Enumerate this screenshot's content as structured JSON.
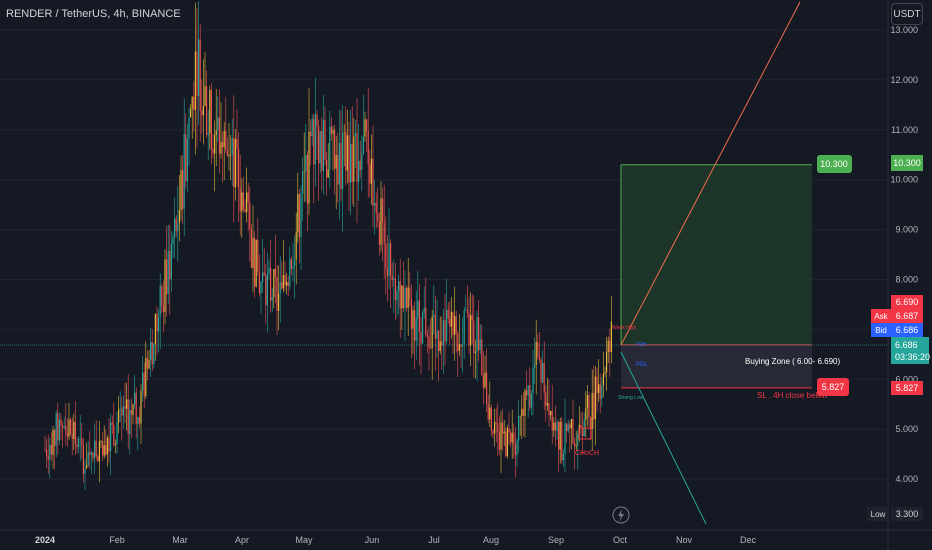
{
  "header": {
    "title": "RENDER / TetherUS, 4h, BINANCE",
    "currency_button": "USDT"
  },
  "price_axis": {
    "ticks": [
      "13.000",
      "12.000",
      "11.000",
      "10.000",
      "9.000",
      "8.000",
      "7.000",
      "6.000",
      "5.000",
      "4.000"
    ],
    "tick_values": [
      13,
      12,
      11,
      10,
      9,
      8,
      7,
      6,
      5,
      4
    ]
  },
  "time_axis": {
    "ticks": [
      "2024",
      "Feb",
      "Mar",
      "Apr",
      "May",
      "Jun",
      "Jul",
      "Aug",
      "Sep",
      "Oct",
      "Nov",
      "Dec"
    ]
  },
  "price_tags": {
    "target": "10.300",
    "target_right": "10.300",
    "high": "6.690",
    "ask_label": "Ask",
    "ask_value": "6.687",
    "bid_label": "Bid",
    "bid_value": "6.686",
    "last": "6.686",
    "countdown": "03:36:20",
    "stop": "5.827",
    "stop_right": "5.827",
    "low_label": "Low",
    "low_value": "3.300"
  },
  "annotations": {
    "buying_zone": "Buying Zone ( 6.00- 6.690)",
    "sl_note": "SL . 4H close below",
    "choch": "CHoCH",
    "pdl": "PDL",
    "strong_low": "Strong Low",
    "weak_high": "Weak High",
    "pdh": "PDH"
  },
  "colors": {
    "background": "#151924",
    "up": "#26a69a",
    "up_alt": "#e2b93b",
    "down": "#ef5350",
    "target_green": "#4caf50",
    "stop_red": "#f23645",
    "bid_blue": "#2962ff"
  },
  "chart_data": {
    "type": "candlestick",
    "symbol": "RENDER / TetherUS",
    "interval": "4h",
    "exchange": "BINANCE",
    "ylim": [
      3.3,
      13.5
    ],
    "approx_path": [
      {
        "x": "2024-01-01",
        "y": 4.6
      },
      {
        "x": "2024-01-10",
        "y": 5.2
      },
      {
        "x": "2024-01-20",
        "y": 4.4
      },
      {
        "x": "2024-01-31",
        "y": 4.9
      },
      {
        "x": "2024-02-15",
        "y": 5.4
      },
      {
        "x": "2024-02-26",
        "y": 7.5
      },
      {
        "x": "2024-03-06",
        "y": 9.5
      },
      {
        "x": "2024-03-14",
        "y": 12.5
      },
      {
        "x": "2024-03-20",
        "y": 11.2
      },
      {
        "x": "2024-04-01",
        "y": 10.4
      },
      {
        "x": "2024-04-13",
        "y": 8.0
      },
      {
        "x": "2024-04-24",
        "y": 7.6
      },
      {
        "x": "2024-05-10",
        "y": 10.9
      },
      {
        "x": "2024-05-20",
        "y": 10.3
      },
      {
        "x": "2024-06-05",
        "y": 10.6
      },
      {
        "x": "2024-06-12",
        "y": 8.8
      },
      {
        "x": "2024-06-25",
        "y": 7.3
      },
      {
        "x": "2024-07-10",
        "y": 7.0
      },
      {
        "x": "2024-07-27",
        "y": 6.9
      },
      {
        "x": "2024-08-05",
        "y": 4.8
      },
      {
        "x": "2024-08-15",
        "y": 4.7
      },
      {
        "x": "2024-08-25",
        "y": 6.4
      },
      {
        "x": "2024-09-06",
        "y": 4.7
      },
      {
        "x": "2024-09-20",
        "y": 5.4
      },
      {
        "x": "2024-09-30",
        "y": 6.7
      }
    ],
    "levels": {
      "target": 10.3,
      "entry_top": 6.69,
      "entry_bottom": 6.0,
      "stop": 5.827,
      "last": 6.686
    }
  }
}
